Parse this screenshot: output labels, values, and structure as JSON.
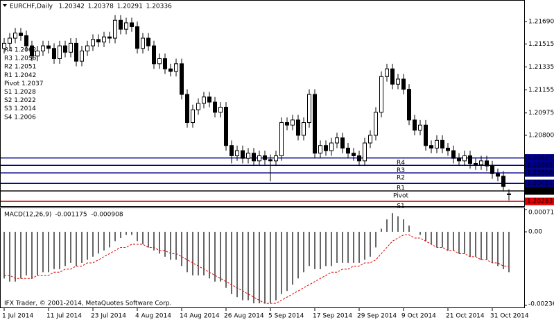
{
  "chart_data": {
    "type": "candlestick",
    "title": "EURCHF,Daily",
    "header_values": [
      1.20342,
      1.20378,
      1.20291,
      1.20336
    ],
    "categories": [
      "1 Jul 2014",
      null,
      null,
      null,
      null,
      null,
      null,
      null,
      "11 Jul 2014",
      null,
      null,
      null,
      null,
      null,
      null,
      null,
      "23 Jul 2014",
      null,
      null,
      null,
      null,
      null,
      null,
      null,
      "4 Aug 2014",
      null,
      null,
      null,
      null,
      null,
      null,
      null,
      "14 Aug 2014",
      null,
      null,
      null,
      null,
      null,
      null,
      null,
      "26 Aug 2014",
      null,
      null,
      null,
      null,
      null,
      null,
      null,
      "5 Sep 2014",
      null,
      null,
      null,
      null,
      null,
      null,
      null,
      "17 Sep 2014",
      null,
      null,
      null,
      null,
      null,
      null,
      null,
      "29 Sep 2014",
      null,
      null,
      null,
      null,
      null,
      null,
      null,
      "9 Oct 2014",
      null,
      null,
      null,
      null,
      null,
      null,
      null,
      "21 Oct 2014",
      null,
      null,
      null,
      null,
      null,
      null,
      null,
      "31 Oct 2014",
      null,
      null,
      null
    ],
    "ohlc": [
      [
        1.2148,
        1.2156,
        1.2144,
        1.2152
      ],
      [
        1.2152,
        1.216,
        1.2148,
        1.2156
      ],
      [
        1.2156,
        1.2164,
        1.2152,
        1.216
      ],
      [
        1.216,
        1.2164,
        1.2154,
        1.2158
      ],
      [
        1.2158,
        1.2162,
        1.2146,
        1.215
      ],
      [
        1.215,
        1.2154,
        1.2138,
        1.2142
      ],
      [
        1.2142,
        1.215,
        1.2138,
        1.2146
      ],
      [
        1.2146,
        1.2154,
        1.2142,
        1.215
      ],
      [
        1.215,
        1.2154,
        1.2144,
        1.2148
      ],
      [
        1.2148,
        1.2152,
        1.2136,
        1.214
      ],
      [
        1.214,
        1.2154,
        1.2136,
        1.215
      ],
      [
        1.215,
        1.2154,
        1.2141,
        1.2145
      ],
      [
        1.2145,
        1.2156,
        1.2141,
        1.2152
      ],
      [
        1.2152,
        1.2156,
        1.2134,
        1.2138
      ],
      [
        1.2138,
        1.215,
        1.2134,
        1.2146
      ],
      [
        1.2146,
        1.2154,
        1.2142,
        1.215
      ],
      [
        1.215,
        1.2159,
        1.2146,
        1.2155
      ],
      [
        1.2155,
        1.2159,
        1.2149,
        1.2153
      ],
      [
        1.2153,
        1.2161,
        1.2149,
        1.2157
      ],
      [
        1.2157,
        1.2161,
        1.2152,
        1.2156
      ],
      [
        1.2156,
        1.2174,
        1.2152,
        1.217
      ],
      [
        1.217,
        1.2174,
        1.2159,
        1.2163
      ],
      [
        1.2163,
        1.2172,
        1.2159,
        1.2168
      ],
      [
        1.2168,
        1.2172,
        1.2161,
        1.2165
      ],
      [
        1.2165,
        1.2169,
        1.2144,
        1.2148
      ],
      [
        1.2148,
        1.216,
        1.2144,
        1.2156
      ],
      [
        1.2156,
        1.216,
        1.2146,
        1.215
      ],
      [
        1.215,
        1.2154,
        1.2132,
        1.2136
      ],
      [
        1.2136,
        1.2144,
        1.2132,
        1.214
      ],
      [
        1.214,
        1.2144,
        1.2128,
        1.2132
      ],
      [
        1.2132,
        1.2136,
        1.2126,
        1.213
      ],
      [
        1.213,
        1.214,
        1.2126,
        1.2136
      ],
      [
        1.2136,
        1.214,
        1.2108,
        1.2112
      ],
      [
        1.2112,
        1.2116,
        1.2086,
        1.209
      ],
      [
        1.209,
        1.2104,
        1.2086,
        1.21
      ],
      [
        1.21,
        1.2109,
        1.2096,
        1.2105
      ],
      [
        1.2105,
        1.2114,
        1.2101,
        1.211
      ],
      [
        1.211,
        1.2114,
        1.2102,
        1.2106
      ],
      [
        1.2106,
        1.211,
        1.2094,
        1.2098
      ],
      [
        1.2098,
        1.2106,
        1.2094,
        1.2102
      ],
      [
        1.2102,
        1.2106,
        1.2068,
        1.2072
      ],
      [
        1.2072,
        1.2076,
        1.2058,
        1.2064
      ],
      [
        1.2064,
        1.2072,
        1.206,
        1.2068
      ],
      [
        1.2068,
        1.2072,
        1.2058,
        1.2062
      ],
      [
        1.2062,
        1.207,
        1.2058,
        1.2066
      ],
      [
        1.2066,
        1.207,
        1.2056,
        1.206
      ],
      [
        1.206,
        1.2068,
        1.2056,
        1.2064
      ],
      [
        1.2064,
        1.2068,
        1.2057,
        1.2061
      ],
      [
        1.2061,
        1.2065,
        1.2044,
        1.206
      ],
      [
        1.206,
        1.2068,
        1.2056,
        1.2064
      ],
      [
        1.2064,
        1.2094,
        1.206,
        1.209
      ],
      [
        1.209,
        1.2094,
        1.2084,
        1.2088
      ],
      [
        1.2088,
        1.2096,
        1.2084,
        1.2092
      ],
      [
        1.2092,
        1.2096,
        1.2076,
        1.208
      ],
      [
        1.208,
        1.2094,
        1.2076,
        1.209
      ],
      [
        1.209,
        1.2116,
        1.2086,
        1.2112
      ],
      [
        1.2112,
        1.2116,
        1.2062,
        1.2066
      ],
      [
        1.2066,
        1.2076,
        1.2062,
        1.2072
      ],
      [
        1.2072,
        1.2076,
        1.2064,
        1.2068
      ],
      [
        1.2068,
        1.2078,
        1.2064,
        1.2074
      ],
      [
        1.2074,
        1.2082,
        1.207,
        1.2078
      ],
      [
        1.2078,
        1.2082,
        1.2066,
        1.207
      ],
      [
        1.207,
        1.2074,
        1.2062,
        1.2066
      ],
      [
        1.2066,
        1.207,
        1.206,
        1.2064
      ],
      [
        1.2064,
        1.2068,
        1.2056,
        1.206
      ],
      [
        1.206,
        1.2078,
        1.2056,
        1.2074
      ],
      [
        1.2074,
        1.2084,
        1.207,
        1.208
      ],
      [
        1.208,
        1.2102,
        1.2076,
        1.2098
      ],
      [
        1.2098,
        1.213,
        1.2094,
        1.2126
      ],
      [
        1.2126,
        1.2136,
        1.2122,
        1.2132
      ],
      [
        1.2132,
        1.2136,
        1.2116,
        1.212
      ],
      [
        1.212,
        1.2128,
        1.2116,
        1.2124
      ],
      [
        1.2124,
        1.2128,
        1.2112,
        1.2116
      ],
      [
        1.2116,
        1.212,
        1.2088,
        1.2092
      ],
      [
        1.2092,
        1.2096,
        1.208,
        1.2084
      ],
      [
        1.2084,
        1.2092,
        1.208,
        1.2088
      ],
      [
        1.2088,
        1.2092,
        1.2068,
        1.2072
      ],
      [
        1.2072,
        1.2076,
        1.2066,
        1.207
      ],
      [
        1.207,
        1.208,
        1.2066,
        1.2076
      ],
      [
        1.2076,
        1.208,
        1.2066,
        1.207
      ],
      [
        1.207,
        1.2074,
        1.2064,
        1.2068
      ],
      [
        1.2068,
        1.2072,
        1.2058,
        1.2062
      ],
      [
        1.2062,
        1.2066,
        1.2056,
        1.206
      ],
      [
        1.206,
        1.2068,
        1.2056,
        1.2064
      ],
      [
        1.2064,
        1.2068,
        1.2054,
        1.2058
      ],
      [
        1.2058,
        1.2062,
        1.2053,
        1.2057
      ],
      [
        1.2057,
        1.2064,
        1.2053,
        1.206
      ],
      [
        1.206,
        1.2064,
        1.2052,
        1.2056
      ],
      [
        1.2056,
        1.206,
        1.2046,
        1.205
      ],
      [
        1.205,
        1.2054,
        1.2044,
        1.2048
      ],
      [
        1.2048,
        1.2052,
        1.2036,
        1.204
      ],
      [
        1.20342,
        1.20378,
        1.20291,
        1.20336
      ]
    ],
    "ylim": [
      1.20246,
      1.21837
    ],
    "yticks": [
      {
        "value": 1.2169,
        "label": "1.21690"
      },
      1.21515,
      1.21335,
      1.21155,
      1.20975,
      {
        "value": 1.208,
        "label": "1.20800"
      }
    ],
    "levels": [
      {
        "name": "R4",
        "value": 1.20623,
        "color": "#00008b"
      },
      {
        "name": "R3",
        "value": 1.20565,
        "color": "#00008b"
      },
      {
        "name": "R2",
        "value": 1.20506,
        "color": "#00008b"
      },
      {
        "name": "R1",
        "value": 1.20424,
        "color": "#00008b"
      },
      {
        "name": "Pivot",
        "value": 1.20365,
        "color": "#000000"
      },
      {
        "name": "S1",
        "value": 1.20283,
        "color": "#e00000"
      }
    ],
    "pivot_list": [
      "R4 1.2062",
      "R3 1.2056",
      "R2 1.2051",
      "R1 1.2042",
      "Pivot 1.2037",
      "S1 1.2028",
      "S2 1.2022",
      "S3 1.2014",
      "S4 1.2006"
    ],
    "macd": {
      "label": "MACD(12,26,9)",
      "label_values": [
        -0.001175,
        -0.000908
      ],
      "ylim": [
        -0.002364,
        0.000715
      ],
      "yticks": [
        0.000715,
        {
          "value": 0,
          "label": "0.00"
        },
        -0.002364
      ],
      "histogram": [
        -0.0015,
        -0.0016,
        -0.0016,
        -0.0015,
        -0.0014,
        -0.0015,
        -0.0014,
        -0.0013,
        -0.0013,
        -0.0012,
        -0.0012,
        -0.0011,
        -0.001,
        -0.0011,
        -0.001,
        -0.0009,
        -0.0008,
        -0.0007,
        -0.0006,
        -0.0005,
        -0.0003,
        -0.0002,
        -0.0001,
        -0.0001,
        -0.0003,
        -0.0004,
        -0.0005,
        -0.0006,
        -0.0007,
        -0.0008,
        -0.0009,
        -0.0009,
        -0.0011,
        -0.0013,
        -0.0014,
        -0.0014,
        -0.0014,
        -0.0015,
        -0.0016,
        -0.0016,
        -0.0018,
        -0.002,
        -0.0021,
        -0.0022,
        -0.0022,
        -0.0023,
        -0.0023,
        -0.0023,
        -0.0023,
        -0.0022,
        -0.002,
        -0.0019,
        -0.0017,
        -0.0015,
        -0.0013,
        -0.0011,
        -0.0012,
        -0.0012,
        -0.0011,
        -0.0011,
        -0.001,
        -0.001,
        -0.001,
        -0.001,
        -0.001,
        -0.0009,
        -0.0008,
        -0.0005,
        0.0001,
        0.0004,
        0.0006,
        0.0005,
        0.0004,
        0.0002,
        0,
        -0.0001,
        -0.0003,
        -0.0004,
        -0.0005,
        -0.0005,
        -0.0006,
        -0.0006,
        -0.0007,
        -0.0007,
        -0.0008,
        -0.0008,
        -0.0009,
        -0.0009,
        -0.001,
        -0.0011,
        -0.0012,
        -0.0013
      ],
      "signal": [
        -0.0014,
        -0.0014,
        -0.0015,
        -0.0015,
        -0.0015,
        -0.0015,
        -0.0014,
        -0.0014,
        -0.0014,
        -0.0013,
        -0.0013,
        -0.0012,
        -0.0012,
        -0.0011,
        -0.0011,
        -0.001,
        -0.001,
        -0.0009,
        -0.0008,
        -0.0007,
        -0.0006,
        -0.0005,
        -0.0005,
        -0.0004,
        -0.0004,
        -0.0004,
        -0.0005,
        -0.0005,
        -0.0006,
        -0.0006,
        -0.0007,
        -0.0007,
        -0.0008,
        -0.0009,
        -0.001,
        -0.0011,
        -0.0012,
        -0.0013,
        -0.0014,
        -0.0015,
        -0.0016,
        -0.0017,
        -0.0018,
        -0.0019,
        -0.002,
        -0.0021,
        -0.0022,
        -0.0023,
        -0.0023,
        -0.0023,
        -0.0022,
        -0.0021,
        -0.002,
        -0.0019,
        -0.0018,
        -0.0017,
        -0.0016,
        -0.0015,
        -0.0014,
        -0.0013,
        -0.0013,
        -0.0012,
        -0.0012,
        -0.0011,
        -0.0011,
        -0.001,
        -0.001,
        -0.0009,
        -0.0007,
        -0.0005,
        -0.0003,
        -0.0002,
        -0.0001,
        -0.0001,
        -0.0002,
        -0.0002,
        -0.0003,
        -0.0004,
        -0.0005,
        -0.0005,
        -0.0006,
        -0.0006,
        -0.0007,
        -0.0007,
        -0.0008,
        -0.0008,
        -0.0009,
        -0.0009,
        -0.001,
        -0.001,
        -0.0011,
        -0.0011
      ],
      "histogram_color": "#000000",
      "signal_color": "#e00000"
    },
    "footer": "IFX Trader, © 2001-2014, MetaQuotes Software Corp."
  }
}
